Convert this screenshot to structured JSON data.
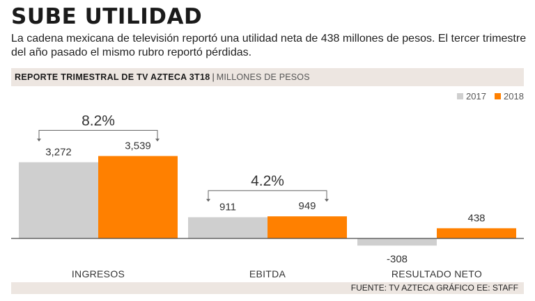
{
  "headline": "SUBE UTILIDAD",
  "deck": "La cadena mexicana de televisión reportó una utilidad neta de 438 millones de pesos. El tercer trimestre del año pasado el mismo rubro reportó pérdidas.",
  "subhead": {
    "label": "REPORTE TRIMESTRAL DE TV AZTECA 3T18",
    "separator": "|",
    "unit": "MILLONES DE PESOS"
  },
  "footer": "FUENTE: TV AZTECA GRÁFICO EE: STAFF",
  "colors": {
    "s2017": "#cfcfcf",
    "s2018": "#ff8000",
    "bracket": "#666666",
    "axis": "#4a4a4a"
  },
  "chart_data": {
    "type": "bar",
    "title": "REPORTE TRIMESTRAL DE TV AZTECA 3T18",
    "ylabel": "MILLONES DE PESOS",
    "xlabel": "",
    "legend_position": "top-right",
    "grid": false,
    "ylim": [
      -350,
      3800
    ],
    "categories": [
      "INGRESOS",
      "EBITDA",
      "RESULTADO NETO"
    ],
    "series": [
      {
        "name": "2017",
        "values": [
          3272,
          911,
          -308
        ],
        "labels": [
          "3,272",
          "911",
          "-308"
        ]
      },
      {
        "name": "2018",
        "values": [
          3539,
          949,
          438
        ],
        "labels": [
          "3,539",
          "949",
          "438"
        ]
      }
    ],
    "annotations": [
      {
        "category": "INGRESOS",
        "text": "8.2%"
      },
      {
        "category": "EBITDA",
        "text": "4.2%"
      }
    ]
  }
}
